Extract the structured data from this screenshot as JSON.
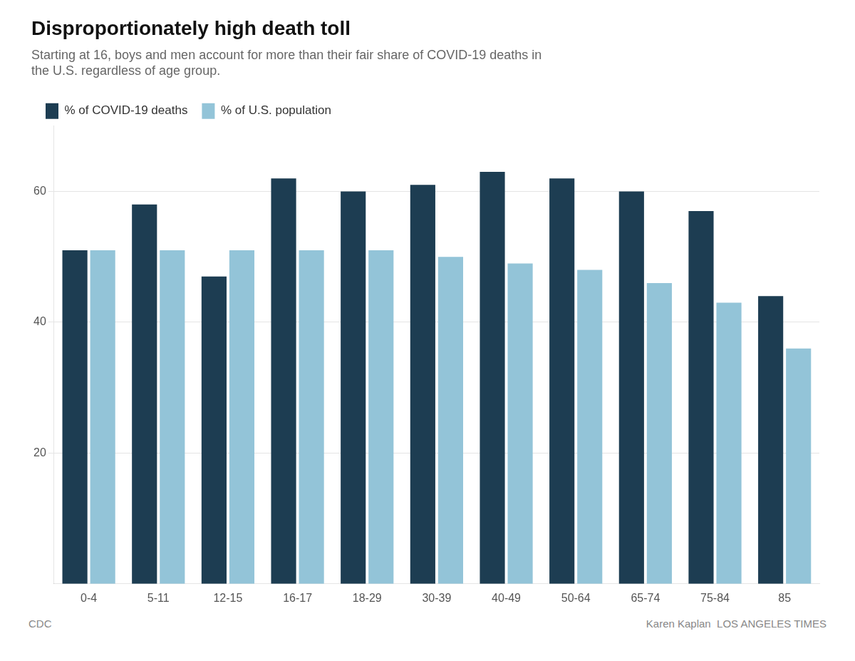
{
  "chart_data": {
    "type": "bar",
    "title": "Disproportionately high death toll",
    "subtitle": [
      "Starting at 16, boys and men account for more than their fair share of COVID-19 deaths in",
      "the U.S. regardless of age group."
    ],
    "categories": [
      "0-4",
      "5-11",
      "12-15",
      "16-17",
      "18-29",
      "30-39",
      "40-49",
      "50-64",
      "65-74",
      "75-84",
      "85"
    ],
    "series": [
      {
        "name": "% of COVID-19 deaths",
        "color": "#1d3d52",
        "values": [
          51,
          58,
          47,
          62,
          60,
          61,
          63,
          62,
          60,
          57,
          44
        ]
      },
      {
        "name": "% of U.S. population",
        "color": "#93c4d8",
        "values": [
          51,
          51,
          51,
          51,
          51,
          50,
          49,
          48,
          46,
          43,
          36
        ]
      }
    ],
    "ylim": [
      0,
      70
    ],
    "yticks": [
      20,
      40,
      60
    ],
    "grid": true,
    "legend": "upper left",
    "annotations": [
      "CDC",
      "Karen Kaplan  LOS ANGELES TIMES"
    ]
  }
}
